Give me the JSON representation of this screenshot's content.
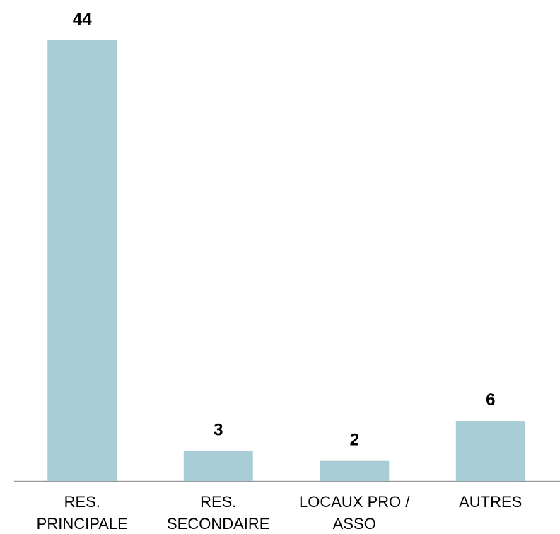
{
  "chart_data": {
    "type": "bar",
    "categories": [
      "RES.\nPRINCIPALE",
      "RES.\nSECONDAIRE",
      "LOCAUX PRO /\nASSO",
      "AUTRES"
    ],
    "values": [
      44,
      3,
      2,
      6
    ],
    "color": "#a9cdd6"
  }
}
